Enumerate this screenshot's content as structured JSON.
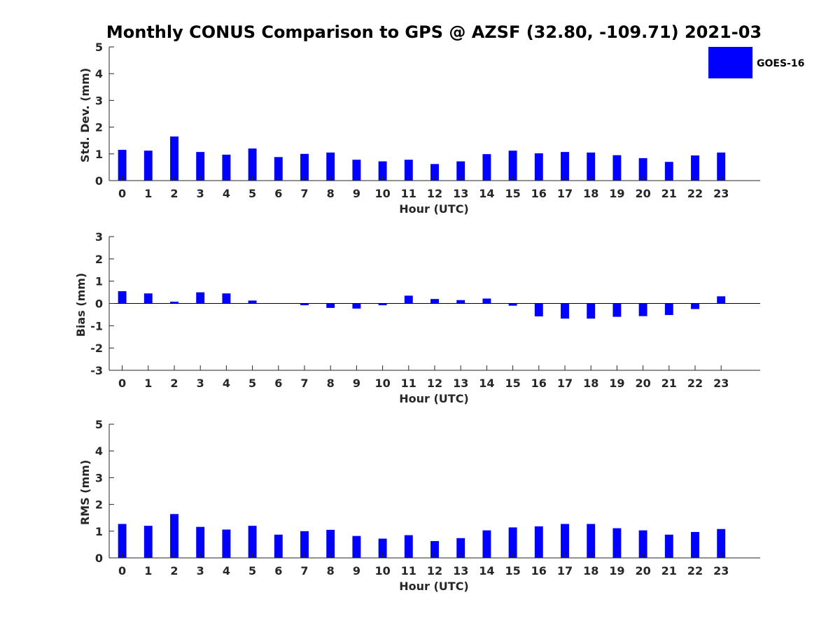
{
  "title": "Monthly CONUS Comparison to GPS @ AZSF (32.80, -109.71) 2021-03",
  "legend": {
    "label": "GOES-16",
    "color": "#0000ff"
  },
  "chart_data": [
    {
      "type": "bar",
      "xlabel": "Hour (UTC)",
      "ylabel": "Std. Dev. (mm)",
      "ylim": [
        0,
        5
      ],
      "yticks": [
        "0",
        "1",
        "2",
        "3",
        "4",
        "5"
      ],
      "categories": [
        "0",
        "1",
        "2",
        "3",
        "4",
        "5",
        "6",
        "7",
        "8",
        "9",
        "10",
        "11",
        "12",
        "13",
        "14",
        "15",
        "16",
        "17",
        "18",
        "19",
        "20",
        "21",
        "22",
        "23"
      ],
      "series": [
        {
          "name": "GOES-16",
          "color": "#0000ff",
          "values": [
            1.15,
            1.12,
            1.65,
            1.07,
            0.97,
            1.2,
            0.88,
            1.0,
            1.05,
            0.78,
            0.72,
            0.78,
            0.62,
            0.72,
            0.99,
            1.12,
            1.02,
            1.07,
            1.05,
            0.95,
            0.84,
            0.7,
            0.94,
            1.05
          ]
        }
      ]
    },
    {
      "type": "bar",
      "xlabel": "Hour (UTC)",
      "ylabel": "Bias (mm)",
      "ylim": [
        -3,
        3
      ],
      "yticks": [
        "-3",
        "-2",
        "-1",
        "0",
        "1",
        "2",
        "3"
      ],
      "categories": [
        "0",
        "1",
        "2",
        "3",
        "4",
        "5",
        "6",
        "7",
        "8",
        "9",
        "10",
        "11",
        "12",
        "13",
        "14",
        "15",
        "16",
        "17",
        "18",
        "19",
        "20",
        "21",
        "22",
        "23"
      ],
      "series": [
        {
          "name": "GOES-16",
          "color": "#0000ff",
          "values": [
            0.55,
            0.45,
            0.08,
            0.5,
            0.45,
            0.13,
            0.0,
            -0.08,
            -0.2,
            -0.23,
            -0.08,
            0.35,
            0.2,
            0.15,
            0.22,
            -0.1,
            -0.58,
            -0.68,
            -0.68,
            -0.6,
            -0.57,
            -0.52,
            -0.25,
            0.32
          ]
        }
      ]
    },
    {
      "type": "bar",
      "xlabel": "Hour (UTC)",
      "ylabel": "RMS (mm)",
      "ylim": [
        0,
        5
      ],
      "yticks": [
        "0",
        "1",
        "2",
        "3",
        "4",
        "5"
      ],
      "categories": [
        "0",
        "1",
        "2",
        "3",
        "4",
        "5",
        "6",
        "7",
        "8",
        "9",
        "10",
        "11",
        "12",
        "13",
        "14",
        "15",
        "16",
        "17",
        "18",
        "19",
        "20",
        "21",
        "22",
        "23"
      ],
      "series": [
        {
          "name": "GOES-16",
          "color": "#0000ff",
          "values": [
            1.27,
            1.2,
            1.64,
            1.16,
            1.06,
            1.2,
            0.87,
            1.0,
            1.05,
            0.82,
            0.72,
            0.85,
            0.63,
            0.74,
            1.03,
            1.14,
            1.18,
            1.27,
            1.27,
            1.11,
            1.03,
            0.87,
            0.97,
            1.08
          ]
        }
      ]
    }
  ]
}
